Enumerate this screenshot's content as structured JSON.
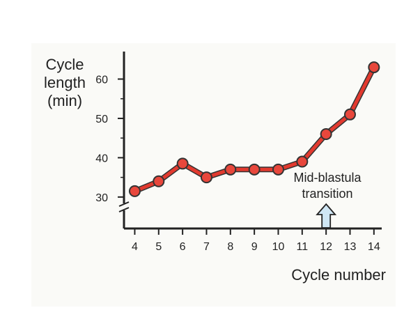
{
  "chart_data": {
    "type": "line",
    "x": [
      4,
      5,
      6,
      7,
      8,
      9,
      10,
      11,
      12,
      13,
      14
    ],
    "series": [
      {
        "values": [
          31.5,
          34,
          38.5,
          35,
          37,
          37,
          37,
          39,
          46,
          51,
          63
        ]
      }
    ],
    "xlabel": "Cycle number",
    "ylabel": [
      "Cycle",
      "length",
      "(min)"
    ],
    "xticks": [
      "4",
      "5",
      "6",
      "7",
      "8",
      "9",
      "10",
      "11",
      "12",
      "13",
      "14"
    ],
    "yticks": [
      "30",
      "40",
      "50",
      "60"
    ],
    "ytick_values": [
      30,
      40,
      50,
      60
    ],
    "xlim": [
      3.55,
      14.5
    ],
    "ylim": [
      22,
      67
    ],
    "axis_break": "y",
    "grid": false,
    "annotation": {
      "lines": [
        "Mid-blastula",
        "transition"
      ],
      "x": 12,
      "marker": "up-arrow"
    },
    "colors": {
      "background": "#fafaf7",
      "line": "#e23a2f",
      "line_outline": "#333333",
      "marker": "#e8473c",
      "arrow_fill": "#cfe6f4",
      "axis": "#222222"
    }
  }
}
